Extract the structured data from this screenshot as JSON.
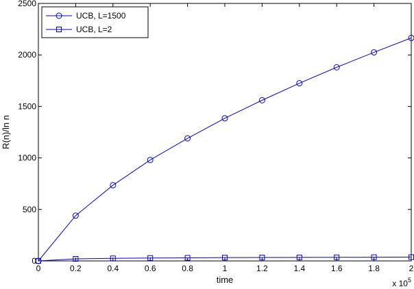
{
  "chart_data": {
    "type": "line",
    "xlabel": "time",
    "ylabel": "R(n)/ln n",
    "x_multiplier_label": "x 10",
    "x_multiplier_exp": "5",
    "xlim": [
      0,
      2
    ],
    "ylim": [
      0,
      2500
    ],
    "x_ticks": [
      0,
      0.2,
      0.4,
      0.6,
      0.8,
      1,
      1.2,
      1.4,
      1.6,
      1.8,
      2
    ],
    "x_tick_labels": [
      "0",
      "0.2",
      "0.4",
      "0.6",
      "0.8",
      "1",
      "1.2",
      "1.4",
      "1.6",
      "1.8",
      "2"
    ],
    "y_ticks": [
      0,
      500,
      1000,
      1500,
      2000,
      2500
    ],
    "y_tick_labels": [
      "0",
      "500",
      "1000",
      "1500",
      "2000",
      "2500"
    ],
    "grid": false,
    "legend_position": "top-left",
    "color": "#0000cc",
    "x": [
      0,
      0.2,
      0.4,
      0.6,
      0.8,
      1,
      1.2,
      1.4,
      1.6,
      1.8,
      2
    ],
    "series": [
      {
        "name": "UCB, L=1500",
        "marker": "circle",
        "values": [
          0,
          440,
          735,
          980,
          1190,
          1385,
          1560,
          1725,
          1880,
          2025,
          2165
        ]
      },
      {
        "name": "UCB, L=2",
        "marker": "square",
        "values": [
          0,
          20,
          25,
          28,
          30,
          32,
          33,
          34,
          35,
          36,
          37
        ]
      }
    ]
  }
}
